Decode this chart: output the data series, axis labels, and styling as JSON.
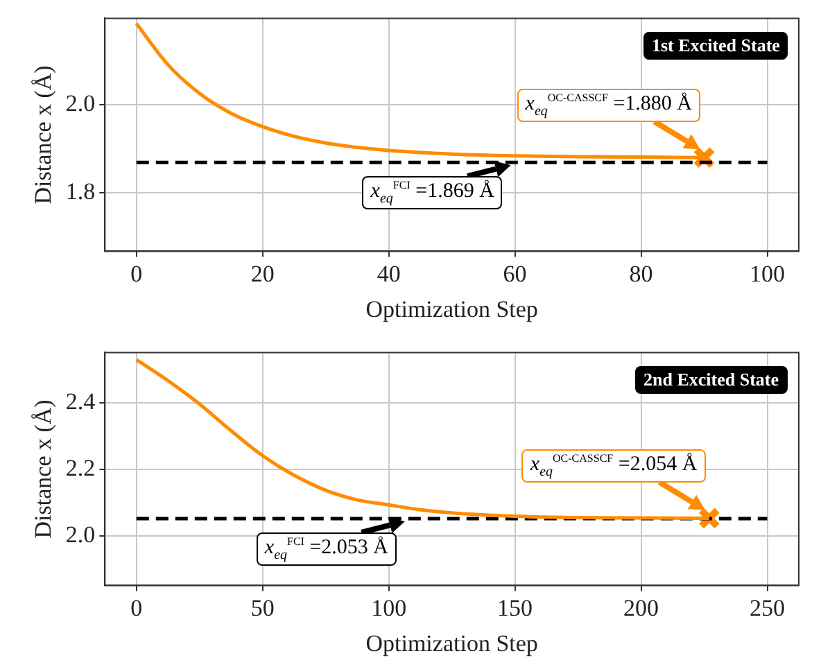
{
  "chart_data": [
    {
      "type": "line",
      "title": "1st Excited State",
      "xlabel": "Optimization Step",
      "ylabel": "Distance x (Å)",
      "xlim": [
        -5,
        105
      ],
      "xticks": [
        0,
        20,
        40,
        60,
        80,
        100
      ],
      "ylim": [
        1.668,
        2.195
      ],
      "yticks": [
        1.8,
        {
          "value": 2.0,
          "label": "2.0"
        }
      ],
      "grid": true,
      "legend": false,
      "series": [
        {
          "color": "#ff8c00",
          "marker": "none",
          "line_style": "solid",
          "x": [
            0,
            5,
            10,
            15,
            20,
            25,
            30,
            35,
            40,
            50,
            60,
            70,
            80,
            90
          ],
          "values": [
            2.183,
            2.09,
            2.025,
            1.98,
            1.95,
            1.928,
            1.913,
            1.903,
            1.896,
            1.888,
            1.884,
            1.882,
            1.881,
            1.88
          ]
        },
        {
          "color": "#000000",
          "marker": "none",
          "line_style": "dashed",
          "x": [
            0,
            100
          ],
          "values": [
            1.869,
            1.869
          ]
        },
        {
          "type": "scatter",
          "color": "#ff8c00",
          "marker": "cross",
          "x": [
            90
          ],
          "values": [
            1.88
          ]
        }
      ],
      "annotations": [
        {
          "text": "x$_{eq}$$^{FCI}$ =1.869 Å",
          "x": 60,
          "y": 1.869
        },
        {
          "text": "x$_{eq}$$^{OC-CASSCF}$ =1.880 Å",
          "x": 90,
          "y": 1.88
        }
      ]
    },
    {
      "type": "line",
      "title": "2nd Excited State",
      "xlabel": "Optimization Step",
      "ylabel": "Distance x (Å)",
      "xlim": [
        -12.5,
        262.5
      ],
      "xticks": [
        0,
        50,
        100,
        150,
        200,
        250
      ],
      "ylim": [
        1.852,
        2.552
      ],
      "yticks": [
        {
          "value": 2.0,
          "label": "2.0"
        },
        2.2,
        2.4
      ],
      "grid": true,
      "legend": false,
      "series": [
        {
          "color": "#ff8c00",
          "marker": "none",
          "line_style": "solid",
          "x": [
            0,
            12,
            25,
            37,
            50,
            62,
            75,
            87,
            100,
            112,
            125,
            150,
            175,
            200,
            227
          ],
          "values": [
            2.53,
            2.47,
            2.397,
            2.32,
            2.242,
            2.185,
            2.138,
            2.11,
            2.094,
            2.08,
            2.07,
            2.06,
            2.056,
            2.055,
            2.054
          ]
        },
        {
          "color": "#000000",
          "marker": "none",
          "line_style": "dashed",
          "x": [
            0,
            250
          ],
          "values": [
            2.053,
            2.053
          ]
        },
        {
          "type": "scatter",
          "color": "#ff8c00",
          "marker": "cross",
          "x": [
            227
          ],
          "values": [
            2.054
          ]
        }
      ],
      "annotations": [
        {
          "text": "x$_{eq}$$^{FCI}$ =2.053 Å",
          "x": 108,
          "y": 2.053
        },
        {
          "text": "x$_{eq}$$^{OC-CASSCF}$ =2.054 Å",
          "x": 227,
          "y": 2.054
        }
      ]
    }
  ]
}
